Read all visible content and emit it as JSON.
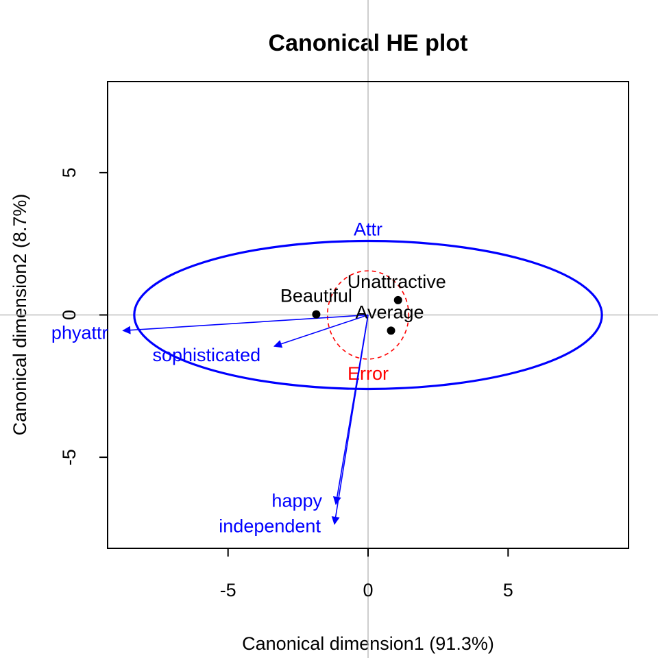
{
  "chart_data": {
    "type": "scatter",
    "title": "Canonical HE plot",
    "xlabel": "Canonical dimension1 (91.3%)",
    "ylabel": "Canonical dimension2 (8.7%)",
    "xlim": [
      -9.3,
      9.3
    ],
    "ylim": [
      -8.2,
      8.2
    ],
    "x_ticks": [
      -5,
      0,
      5
    ],
    "y_ticks": [
      -5,
      0,
      5
    ],
    "x_tick_labels": [
      "-5",
      "0",
      "5"
    ],
    "y_tick_labels": [
      "-5",
      "0",
      "5"
    ],
    "reference_lines": {
      "x": 0,
      "y": 0,
      "color": "#bebebe"
    },
    "points": [
      {
        "label": "Beautiful",
        "x": -1.85,
        "y": 0.02
      },
      {
        "label": "Unattractive",
        "x": 1.07,
        "y": 0.52
      },
      {
        "label": "Average",
        "x": 0.82,
        "y": -0.55
      }
    ],
    "ellipses": [
      {
        "label": "Attr",
        "center": [
          0,
          0
        ],
        "rx": 8.35,
        "ry": 2.6,
        "color": "#0000ff",
        "dash": false
      },
      {
        "label": "Error",
        "center": [
          0,
          0
        ],
        "rx": 1.45,
        "ry": 1.55,
        "color": "#ff0000",
        "dash": true
      }
    ],
    "vectors": [
      {
        "label": "phyattr",
        "x": -8.75,
        "y": -0.55
      },
      {
        "label": "sophisticated",
        "x": -3.35,
        "y": -1.1
      },
      {
        "label": "happy",
        "x": -1.15,
        "y": -6.65
      },
      {
        "label": "independent",
        "x": -1.2,
        "y": -7.35
      }
    ],
    "colors": {
      "vectors": "#0000ff",
      "points": "#000000"
    }
  }
}
